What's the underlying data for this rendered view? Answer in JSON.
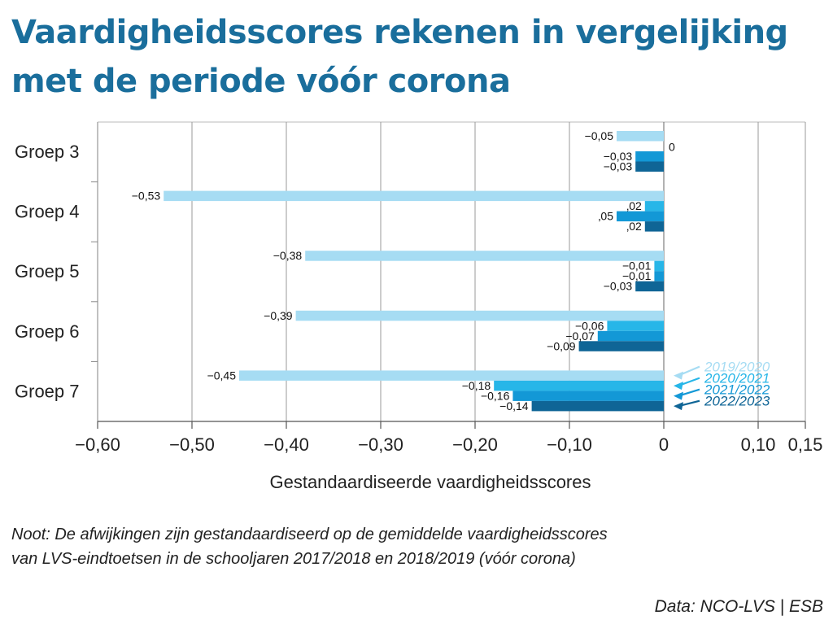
{
  "title": "Vaardigheidsscores rekenen in vergelijking met de periode vóór corona",
  "note": {
    "line1": "Noot: De afwijkingen zijn gestandaardiseerd op de gemiddelde vaardigheidsscores",
    "line2": "van LVS-eindtoetsen in de schooljaren 2017/2018 en 2018/2019 (vóór corona)"
  },
  "source": "Data: NCO-LVS | ESB",
  "chart_data": {
    "type": "bar",
    "orientation": "horizontal",
    "title": "Vaardigheidsscores rekenen in vergelijking met de periode vóór corona",
    "xlabel": "Gestandaardiseerde vaardigheidsscores",
    "ylabel": "",
    "xlim": [
      -0.6,
      0.15
    ],
    "x_ticks": [
      -0.6,
      -0.5,
      -0.4,
      -0.3,
      -0.2,
      -0.1,
      0,
      0.1,
      0.15
    ],
    "x_tick_labels": [
      "−0,60",
      "−0,50",
      "−0,40",
      "−0,30",
      "−0,20",
      "−0,10",
      "0",
      "0,10",
      "0,15"
    ],
    "grid": "vertical",
    "legend_position": "bottom-right",
    "categories": [
      "Groep 3",
      "Groep 4",
      "Groep 5",
      "Groep 6",
      "Groep 7"
    ],
    "series": [
      {
        "name": "2019/2020",
        "color": "#a6dcf3",
        "values": [
          -0.05,
          -0.53,
          -0.38,
          -0.39,
          -0.45
        ],
        "labels": [
          "−0,05",
          "−0,53",
          "−0,38",
          "−0,39",
          "−0,45"
        ]
      },
      {
        "name": "2020/2021",
        "color": "#27b6e8",
        "values": [
          0,
          -0.02,
          -0.01,
          -0.06,
          -0.18
        ],
        "labels": [
          "0",
          "‚02",
          "−0,01",
          "−0,06",
          "−0,18"
        ]
      },
      {
        "name": "2021/2022",
        "color": "#1398d6",
        "values": [
          -0.03,
          -0.05,
          -0.01,
          -0.07,
          -0.16
        ],
        "labels": [
          "−0,03",
          "‚05",
          "−0,01",
          "−0,07",
          "−0,16"
        ]
      },
      {
        "name": "2022/2023",
        "color": "#0f6596",
        "values": [
          -0.03,
          -0.02,
          -0.03,
          -0.09,
          -0.14
        ],
        "labels": [
          "−0,03",
          "‚02",
          "−0,03",
          "−0,09",
          "−0,14"
        ]
      }
    ]
  }
}
